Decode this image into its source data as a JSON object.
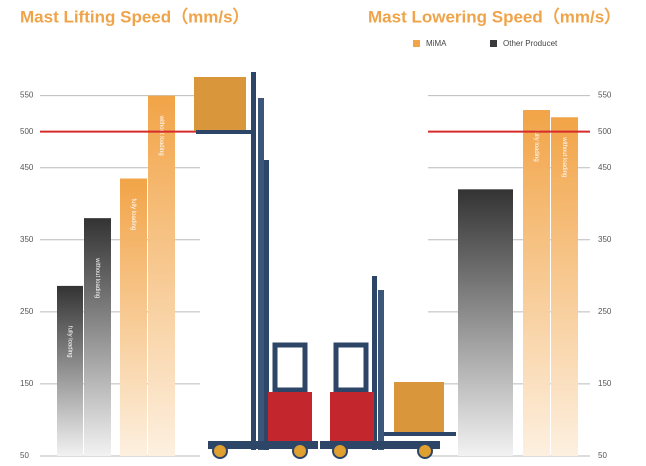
{
  "chart_data": [
    {
      "type": "bar",
      "title": "Mast Lifting Speed（mm/s）",
      "axis_side": "left",
      "ylim": [
        50,
        580
      ],
      "yticks": [
        50,
        150,
        250,
        350,
        450,
        500,
        550
      ],
      "grid": true,
      "reference_line": {
        "value": 500,
        "color": "#d62b2b"
      },
      "series": [
        {
          "color": "#3a3a3c",
          "values": [
            286,
            380
          ],
          "labels": [
            "fully loading",
            "without loading"
          ]
        },
        {
          "color": "#f2a447",
          "values": [
            435,
            550
          ],
          "labels": [
            "fully loading",
            "without loading"
          ]
        }
      ]
    },
    {
      "type": "bar",
      "title": "Mast Lowering Speed（mm/s）",
      "axis_side": "right",
      "ylim": [
        50,
        580
      ],
      "yticks": [
        50,
        150,
        250,
        350,
        450,
        500,
        550
      ],
      "grid": true,
      "reference_line": {
        "value": 500,
        "color": "#d62b2b"
      },
      "legend": "top-right",
      "series": [
        {
          "name": "Other Producet",
          "color": "#3a3a3c",
          "values": [
            420
          ],
          "labels": [
            null
          ]
        },
        {
          "name": "MiMA",
          "color": "#f2a447",
          "values": [
            530,
            520
          ],
          "labels": [
            "fully loading",
            "without loading"
          ]
        }
      ]
    }
  ]
}
